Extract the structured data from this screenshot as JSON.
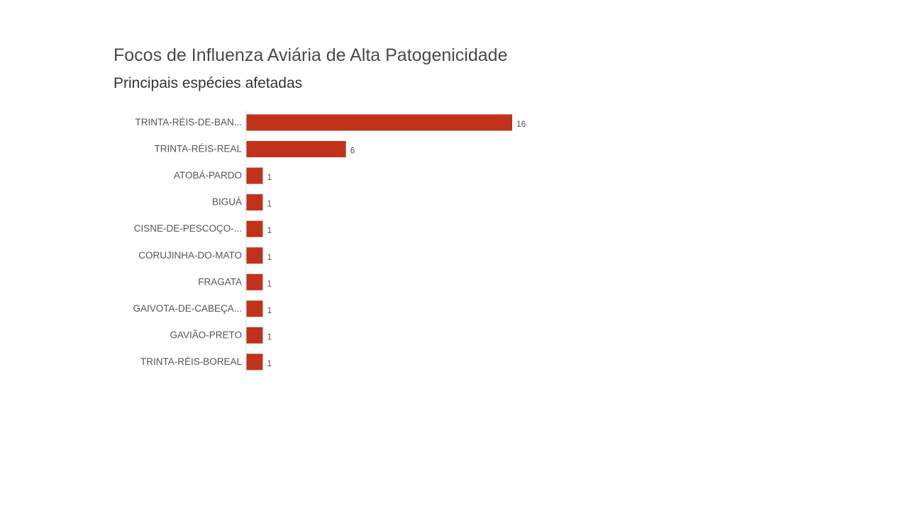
{
  "chart_data": {
    "type": "bar",
    "orientation": "horizontal",
    "title": "Focos de Influenza Aviária de Alta Patogenicidade",
    "subtitle": "Principais espécies afetadas",
    "categories": [
      "TRINTA-RÉIS-DE-BAN...",
      "TRINTA-RÉIS-REAL",
      "ATOBÁ-PARDO",
      "BIGUÁ",
      "CISNE-DE-PESCOÇO-...",
      "CORUJINHA-DO-MATO",
      "FRAGATA",
      "GAIVOTA-DE-CABEÇA...",
      "GAVIÃO-PRETO",
      "TRINTA-RÉIS-BOREAL"
    ],
    "values": [
      16,
      6,
      1,
      1,
      1,
      1,
      1,
      1,
      1,
      1
    ],
    "xlim": [
      0,
      16
    ],
    "grid": false,
    "data_labels": true,
    "bar_color": "#c0321a"
  }
}
